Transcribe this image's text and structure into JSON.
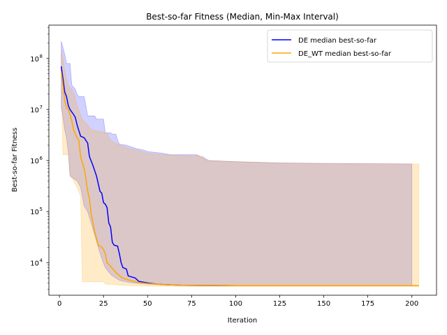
{
  "chart_data": {
    "type": "line",
    "title": "Best-so-far Fitness (Median, Min-Max Interval)",
    "xlabel": "Iteration",
    "ylabel": "Best-so-far Fitness",
    "y_scale": "log",
    "xlim": [
      -6,
      214
    ],
    "ylim": [
      2300,
      450000000
    ],
    "x_ticks": [
      0,
      25,
      50,
      75,
      100,
      125,
      150,
      175,
      200
    ],
    "x_tick_labels": [
      "0",
      "25",
      "50",
      "75",
      "100",
      "125",
      "150",
      "175",
      "200"
    ],
    "y_ticks": [
      10000,
      100000,
      1000000,
      10000000,
      100000000
    ],
    "y_tick_labels": [
      "10",
      "10",
      "10",
      "10",
      "10"
    ],
    "y_tick_exponents": [
      "4",
      "5",
      "6",
      "7",
      "8"
    ],
    "grid": false,
    "legend_position": "top-right",
    "series": [
      {
        "name": "DE median best-so-far",
        "color": "#0000ff",
        "band_color": "#0000ff",
        "band_opacity": 0.18,
        "median": [
          [
            1,
            70000000
          ],
          [
            2,
            40000000
          ],
          [
            3,
            22000000
          ],
          [
            4,
            18000000
          ],
          [
            5,
            12000000
          ],
          [
            6,
            10000000
          ],
          [
            8,
            8000000
          ],
          [
            9,
            7000000
          ],
          [
            10,
            5000000
          ],
          [
            12,
            3000000
          ],
          [
            14,
            2800000
          ],
          [
            16,
            2200000
          ],
          [
            17,
            1200000
          ],
          [
            19,
            800000
          ],
          [
            21,
            500000
          ],
          [
            23,
            250000
          ],
          [
            24,
            230000
          ],
          [
            25,
            150000
          ],
          [
            26,
            140000
          ],
          [
            27,
            120000
          ],
          [
            28,
            60000
          ],
          [
            29,
            50000
          ],
          [
            30,
            25000
          ],
          [
            31,
            22000
          ],
          [
            33,
            21000
          ],
          [
            34,
            15000
          ],
          [
            35,
            10000
          ],
          [
            36,
            8000
          ],
          [
            38,
            7500
          ],
          [
            39,
            5500
          ],
          [
            43,
            5000
          ],
          [
            45,
            4300
          ],
          [
            50,
            4000
          ],
          [
            55,
            3800
          ],
          [
            60,
            3700
          ],
          [
            70,
            3600
          ],
          [
            100,
            3550
          ],
          [
            150,
            3550
          ],
          [
            200,
            3550
          ]
        ],
        "upper": [
          [
            1,
            220000000
          ],
          [
            3,
            120000000
          ],
          [
            4,
            80000000
          ],
          [
            6,
            80000000
          ],
          [
            7,
            30000000
          ],
          [
            9,
            25000000
          ],
          [
            10,
            20000000
          ],
          [
            11,
            18000000
          ],
          [
            14,
            18000000
          ],
          [
            15,
            12000000
          ],
          [
            16,
            7500000
          ],
          [
            20,
            7500000
          ],
          [
            21,
            6500000
          ],
          [
            25,
            6500000
          ],
          [
            26,
            3500000
          ],
          [
            29,
            3500000
          ],
          [
            30,
            3300000
          ],
          [
            32,
            3300000
          ],
          [
            33,
            2500000
          ],
          [
            34,
            2100000
          ],
          [
            38,
            2000000
          ],
          [
            44,
            1700000
          ],
          [
            48,
            1600000
          ],
          [
            50,
            1500000
          ],
          [
            58,
            1400000
          ],
          [
            63,
            1300000
          ],
          [
            78,
            1300000
          ],
          [
            80,
            1200000
          ],
          [
            85,
            1000000
          ],
          [
            100,
            950000
          ],
          [
            125,
            900000
          ],
          [
            150,
            880000
          ],
          [
            175,
            870000
          ],
          [
            200,
            860000
          ]
        ],
        "lower": [
          [
            1,
            11000000
          ],
          [
            2,
            7000000
          ],
          [
            3,
            4000000
          ],
          [
            4,
            2800000
          ],
          [
            5,
            1500000
          ],
          [
            6,
            500000
          ],
          [
            10,
            400000
          ],
          [
            12,
            300000
          ],
          [
            14,
            130000
          ],
          [
            16,
            100000
          ],
          [
            18,
            60000
          ],
          [
            20,
            35000
          ],
          [
            22,
            20000
          ],
          [
            24,
            12000
          ],
          [
            26,
            8000
          ],
          [
            28,
            6500
          ],
          [
            30,
            5500
          ],
          [
            32,
            5000
          ],
          [
            34,
            4500
          ],
          [
            38,
            4200
          ],
          [
            42,
            4000
          ],
          [
            50,
            3800
          ],
          [
            60,
            3650
          ],
          [
            70,
            3550
          ],
          [
            100,
            3500
          ],
          [
            150,
            3500
          ],
          [
            200,
            3500
          ]
        ]
      },
      {
        "name": "DE_WT median best-so-far",
        "color": "#ffa500",
        "band_color": "#ffa500",
        "band_opacity": 0.22,
        "median": [
          [
            1,
            55000000
          ],
          [
            2,
            30000000
          ],
          [
            3,
            15000000
          ],
          [
            4,
            11000000
          ],
          [
            5,
            10000000
          ],
          [
            6,
            8000000
          ],
          [
            7,
            6000000
          ],
          [
            8,
            4000000
          ],
          [
            10,
            2800000
          ],
          [
            11,
            2500000
          ],
          [
            12,
            1200000
          ],
          [
            13,
            900000
          ],
          [
            14,
            700000
          ],
          [
            15,
            450000
          ],
          [
            16,
            250000
          ],
          [
            17,
            180000
          ],
          [
            18,
            90000
          ],
          [
            19,
            60000
          ],
          [
            20,
            40000
          ],
          [
            21,
            30000
          ],
          [
            22,
            22000
          ],
          [
            24,
            20000
          ],
          [
            25,
            18000
          ],
          [
            26,
            15000
          ],
          [
            27,
            10000
          ],
          [
            29,
            8500
          ],
          [
            31,
            7000
          ],
          [
            33,
            6000
          ],
          [
            35,
            5200
          ],
          [
            38,
            4700
          ],
          [
            40,
            4500
          ],
          [
            45,
            4100
          ],
          [
            50,
            3900
          ],
          [
            60,
            3700
          ],
          [
            70,
            3600
          ],
          [
            100,
            3550
          ],
          [
            150,
            3550
          ],
          [
            204,
            3550
          ]
        ],
        "upper": [
          [
            1,
            150000000
          ],
          [
            2,
            100000000
          ],
          [
            3,
            60000000
          ],
          [
            4,
            40000000
          ],
          [
            5,
            30000000
          ],
          [
            7,
            25000000
          ],
          [
            9,
            18000000
          ],
          [
            10,
            12000000
          ],
          [
            13,
            6500000
          ],
          [
            16,
            5000000
          ],
          [
            18,
            4000000
          ],
          [
            27,
            3500000
          ],
          [
            29,
            2500000
          ],
          [
            33,
            2100000
          ],
          [
            38,
            1800000
          ],
          [
            44,
            1600000
          ],
          [
            50,
            1400000
          ],
          [
            58,
            1300000
          ],
          [
            70,
            1250000
          ],
          [
            78,
            1250000
          ],
          [
            82,
            1200000
          ],
          [
            83,
            1000000
          ],
          [
            100,
            950000
          ],
          [
            125,
            900000
          ],
          [
            150,
            880000
          ],
          [
            175,
            870000
          ],
          [
            204,
            860000
          ]
        ],
        "lower": [
          [
            1,
            40000000
          ],
          [
            2,
            1300000
          ],
          [
            5,
            1300000
          ],
          [
            6,
            500000
          ],
          [
            8,
            400000
          ],
          [
            10,
            300000
          ],
          [
            12,
            200000
          ],
          [
            13,
            4200
          ],
          [
            25,
            4200
          ],
          [
            26,
            3800
          ],
          [
            35,
            3600
          ],
          [
            45,
            3500
          ],
          [
            60,
            3450
          ],
          [
            80,
            3400
          ],
          [
            100,
            3400
          ],
          [
            150,
            3400
          ],
          [
            204,
            3400
          ]
        ]
      }
    ]
  }
}
